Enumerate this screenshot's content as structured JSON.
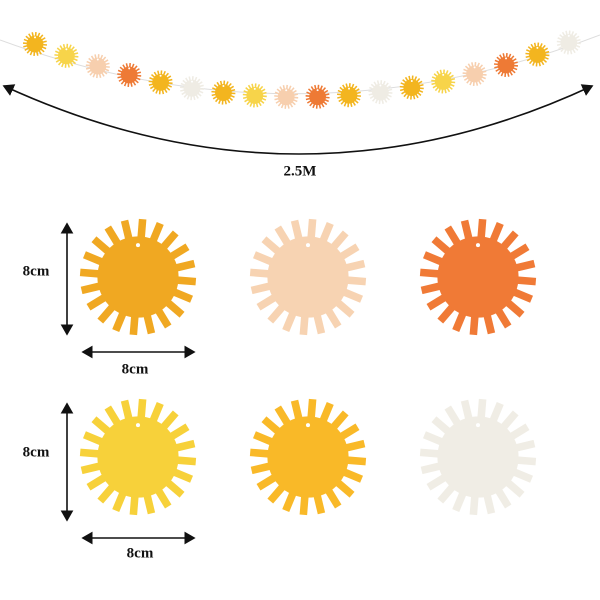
{
  "length_label": "2.5M",
  "items": [
    {
      "height": "8cm",
      "width": "8cm"
    },
    {
      "height": "8cm",
      "width": "8cm"
    }
  ]
}
